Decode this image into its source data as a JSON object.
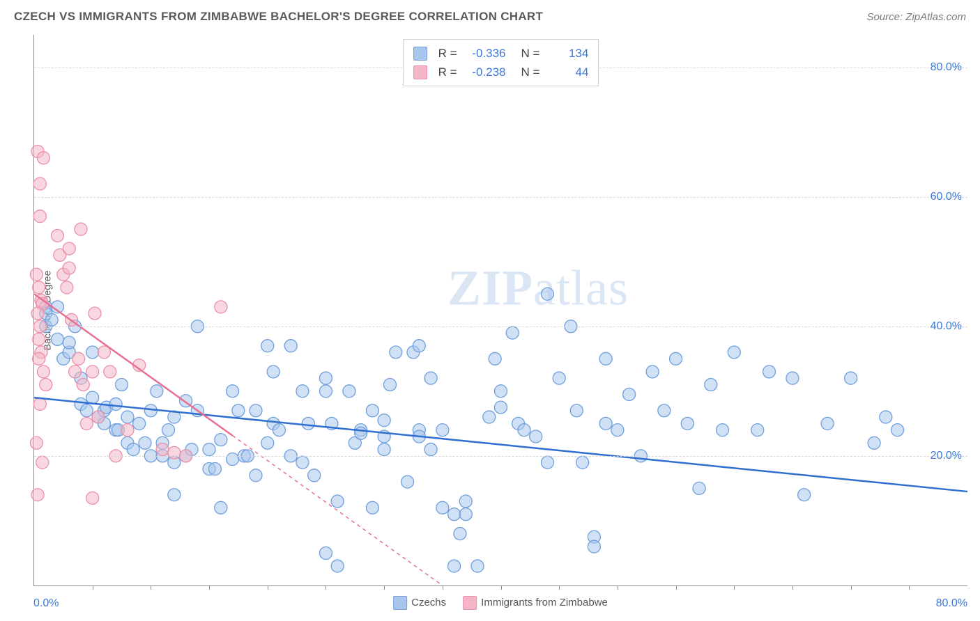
{
  "header": {
    "title": "CZECH VS IMMIGRANTS FROM ZIMBABWE BACHELOR'S DEGREE CORRELATION CHART",
    "source": "Source: ZipAtlas.com"
  },
  "chart": {
    "type": "scatter",
    "ylabel": "Bachelor's Degree",
    "watermark": "ZIPatlas",
    "xlim": [
      0,
      80
    ],
    "ylim": [
      0,
      85
    ],
    "x_tick_start": "0.0%",
    "x_tick_end": "80.0%",
    "x_minor_ticks": [
      5,
      10,
      15,
      20,
      25,
      30,
      35,
      40,
      45,
      50,
      55,
      60,
      65,
      70,
      75
    ],
    "y_ticks": [
      {
        "v": 20,
        "label": "20.0%"
      },
      {
        "v": 40,
        "label": "40.0%"
      },
      {
        "v": 60,
        "label": "60.0%"
      },
      {
        "v": 80,
        "label": "80.0%"
      }
    ],
    "grid_color": "#d8d8d8",
    "background_color": "#ffffff",
    "series": [
      {
        "key": "czechs",
        "name": "Czechs",
        "color_fill": "#a9c6ec",
        "color_stroke": "#6f9fdc",
        "line_color": "#2f6fd0",
        "marker_radius": 9,
        "fill_opacity": 0.55,
        "R": "-0.336",
        "N": "134",
        "trend": {
          "x1": 0,
          "y1": 29,
          "x2": 80,
          "y2": 14.5,
          "dash_from_x": null
        },
        "points": [
          [
            1,
            43
          ],
          [
            1,
            42
          ],
          [
            1,
            40
          ],
          [
            1.5,
            41
          ],
          [
            2,
            43
          ],
          [
            2,
            38
          ],
          [
            2.5,
            35
          ],
          [
            3,
            36
          ],
          [
            3,
            37.5
          ],
          [
            3.5,
            40
          ],
          [
            4,
            32
          ],
          [
            4,
            28
          ],
          [
            4.5,
            27
          ],
          [
            5,
            36
          ],
          [
            5,
            29
          ],
          [
            5.5,
            26
          ],
          [
            6,
            25
          ],
          [
            6,
            27
          ],
          [
            6.2,
            27.5
          ],
          [
            7,
            28
          ],
          [
            7,
            24
          ],
          [
            7.2,
            24
          ],
          [
            7.5,
            31
          ],
          [
            8,
            26
          ],
          [
            8,
            22
          ],
          [
            8.5,
            21
          ],
          [
            9,
            25
          ],
          [
            9.5,
            22
          ],
          [
            10,
            27
          ],
          [
            10,
            20
          ],
          [
            10.5,
            30
          ],
          [
            11,
            22
          ],
          [
            11,
            20
          ],
          [
            11.5,
            24
          ],
          [
            12,
            19
          ],
          [
            12,
            26
          ],
          [
            12,
            14
          ],
          [
            13,
            28.5
          ],
          [
            13,
            20
          ],
          [
            13.5,
            21
          ],
          [
            14,
            27
          ],
          [
            14,
            40
          ],
          [
            15,
            21
          ],
          [
            15,
            18
          ],
          [
            15.5,
            18
          ],
          [
            16,
            22.5
          ],
          [
            16,
            12
          ],
          [
            17,
            30
          ],
          [
            17,
            19.5
          ],
          [
            17.5,
            27
          ],
          [
            18,
            20
          ],
          [
            18.3,
            20
          ],
          [
            19,
            27
          ],
          [
            19,
            17
          ],
          [
            20,
            37
          ],
          [
            20,
            22
          ],
          [
            20.5,
            25
          ],
          [
            20.5,
            33
          ],
          [
            21,
            24
          ],
          [
            22,
            20
          ],
          [
            22,
            37
          ],
          [
            23,
            30
          ],
          [
            23,
            19
          ],
          [
            23.5,
            25
          ],
          [
            24,
            17
          ],
          [
            25,
            30
          ],
          [
            25,
            5
          ],
          [
            25,
            32
          ],
          [
            25.5,
            25
          ],
          [
            26,
            13
          ],
          [
            26,
            3
          ],
          [
            27,
            30
          ],
          [
            27.5,
            22
          ],
          [
            28,
            24
          ],
          [
            28,
            23.5
          ],
          [
            29,
            12
          ],
          [
            29,
            27
          ],
          [
            30,
            23
          ],
          [
            30,
            21
          ],
          [
            30,
            25.5
          ],
          [
            30.5,
            31
          ],
          [
            31,
            36
          ],
          [
            32,
            16
          ],
          [
            32.5,
            36
          ],
          [
            33,
            24
          ],
          [
            33,
            23
          ],
          [
            33,
            37
          ],
          [
            34,
            32
          ],
          [
            34,
            21
          ],
          [
            35,
            12
          ],
          [
            35,
            24
          ],
          [
            36,
            11
          ],
          [
            36,
            3
          ],
          [
            36.5,
            8
          ],
          [
            37,
            13
          ],
          [
            37,
            11
          ],
          [
            38,
            3
          ],
          [
            39,
            26
          ],
          [
            39.5,
            35
          ],
          [
            40,
            27.5
          ],
          [
            40,
            30
          ],
          [
            41,
            39
          ],
          [
            41.5,
            25
          ],
          [
            42,
            24
          ],
          [
            43,
            23
          ],
          [
            44,
            19
          ],
          [
            44,
            45
          ],
          [
            45,
            32
          ],
          [
            46,
            40
          ],
          [
            46.5,
            27
          ],
          [
            47,
            19
          ],
          [
            48,
            7.5
          ],
          [
            48,
            6
          ],
          [
            49,
            25
          ],
          [
            49,
            35
          ],
          [
            50,
            24
          ],
          [
            51,
            29.5
          ],
          [
            52,
            20
          ],
          [
            53,
            33
          ],
          [
            54,
            27
          ],
          [
            55,
            35
          ],
          [
            56,
            25
          ],
          [
            57,
            15
          ],
          [
            58,
            31
          ],
          [
            59,
            24
          ],
          [
            60,
            36
          ],
          [
            62,
            24
          ],
          [
            63,
            33
          ],
          [
            65,
            32
          ],
          [
            66,
            14
          ],
          [
            68,
            25
          ],
          [
            70,
            32
          ],
          [
            72,
            22
          ],
          [
            73,
            26
          ],
          [
            74,
            24
          ]
        ]
      },
      {
        "key": "zimbabwe",
        "name": "Immigrants from Zimbabwe",
        "color_fill": "#f4b6c6",
        "color_stroke": "#eb8fa9",
        "line_color": "#e86f92",
        "marker_radius": 9,
        "fill_opacity": 0.55,
        "R": "-0.238",
        "N": "44",
        "trend": {
          "x1": 0,
          "y1": 45,
          "x2": 35,
          "y2": 0,
          "dash_from_x": 17
        },
        "points": [
          [
            0.3,
            67
          ],
          [
            0.8,
            66
          ],
          [
            0.5,
            62
          ],
          [
            0.5,
            57
          ],
          [
            0.2,
            48
          ],
          [
            0.4,
            46
          ],
          [
            0.6,
            44
          ],
          [
            0.7,
            43.5
          ],
          [
            0.3,
            42
          ],
          [
            0.5,
            40
          ],
          [
            0.4,
            38
          ],
          [
            0.6,
            36
          ],
          [
            0.8,
            33
          ],
          [
            1,
            31
          ],
          [
            0.4,
            35
          ],
          [
            0.5,
            28
          ],
          [
            0.2,
            22
          ],
          [
            0.7,
            19
          ],
          [
            0.3,
            14
          ],
          [
            2,
            54
          ],
          [
            2.2,
            51
          ],
          [
            2.5,
            48
          ],
          [
            2.8,
            46
          ],
          [
            3,
            49
          ],
          [
            3,
            52
          ],
          [
            3.2,
            41
          ],
          [
            3.5,
            33
          ],
          [
            3.8,
            35
          ],
          [
            4,
            55
          ],
          [
            4.2,
            31
          ],
          [
            4.5,
            25
          ],
          [
            5,
            33
          ],
          [
            5.2,
            42
          ],
          [
            5.5,
            26
          ],
          [
            5,
            13.5
          ],
          [
            6,
            36
          ],
          [
            6.5,
            33
          ],
          [
            7,
            20
          ],
          [
            8,
            24
          ],
          [
            9,
            34
          ],
          [
            11,
            21
          ],
          [
            12,
            20.5
          ],
          [
            13,
            20
          ],
          [
            16,
            43
          ]
        ]
      }
    ],
    "bottom_legend": [
      {
        "key": "czechs",
        "label": "Czechs"
      },
      {
        "key": "zimbabwe",
        "label": "Immigrants from Zimbabwe"
      }
    ]
  }
}
